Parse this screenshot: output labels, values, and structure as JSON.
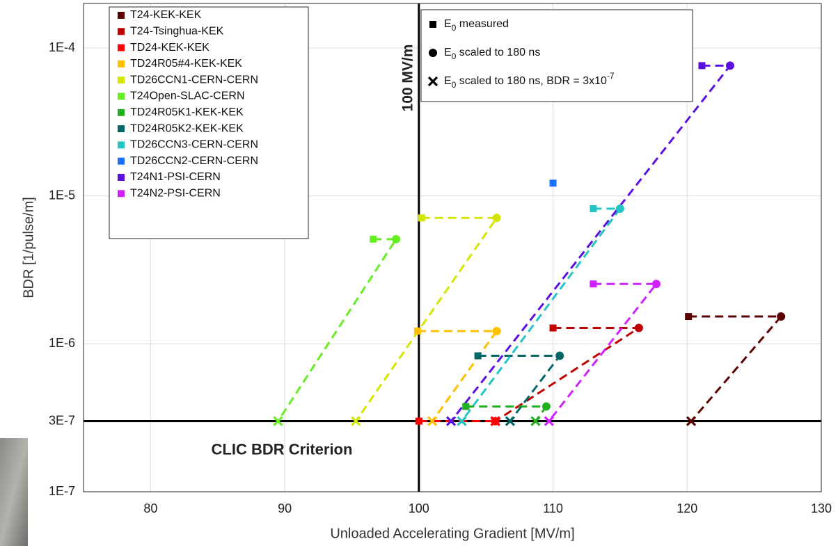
{
  "chart_data": {
    "type": "scatter",
    "x_label": "Unloaded Accelerating Gradient [MV/m]",
    "y_label": "BDR [1/pulse/m]",
    "xlim": [
      75,
      130
    ],
    "ylim": [
      1e-07,
      0.0002
    ],
    "y_scale": "log",
    "grid": true,
    "line_style": "dashed",
    "markers": [
      "square",
      "circle",
      "x"
    ],
    "xticks": [
      80,
      90,
      100,
      110,
      120,
      130
    ],
    "yticks": [
      {
        "value": 1e-07,
        "label": "1E-7"
      },
      {
        "value": 3e-07,
        "label": "3E-7"
      },
      {
        "value": 1e-06,
        "label": "1E-6"
      },
      {
        "value": 1e-05,
        "label": "1E-5"
      },
      {
        "value": 0.0001,
        "label": "1E-4"
      }
    ],
    "reference_lines": [
      {
        "axis": "x",
        "value": 100,
        "label": "100 MV/m"
      },
      {
        "axis": "y",
        "value": 3e-07,
        "label": "CLIC BDR Criterion"
      }
    ],
    "marker_legend": [
      {
        "base": "E",
        "subscript": "0",
        "text": " measured"
      },
      {
        "base": "E",
        "subscript": "0",
        "text": " scaled to 180 ns"
      },
      {
        "base": "E",
        "subscript": "0",
        "text": " scaled to 180 ns, BDR = 3x10",
        "superscript": "-7"
      }
    ],
    "series": [
      {
        "name": "T24-KEK-KEK",
        "color": "#5c0000",
        "x": [
          120.1,
          127.0,
          120.3
        ],
        "values": [
          1.53e-06,
          1.53e-06,
          3e-07
        ]
      },
      {
        "name": "T24-Tsinghua-KEK",
        "color": "#c00000",
        "x": [
          110.0,
          116.4,
          105.7
        ],
        "values": [
          1.28e-06,
          1.28e-06,
          3e-07
        ]
      },
      {
        "name": "TD24-KEK-KEK",
        "color": "#ff0000",
        "x": [
          100.0,
          105.7,
          105.7
        ],
        "values": [
          3e-07,
          3e-07,
          3e-07
        ]
      },
      {
        "name": "TD24R05#4-KEK-KEK",
        "color": "#ffc000",
        "x": [
          99.9,
          105.8,
          101.0
        ],
        "values": [
          1.22e-06,
          1.22e-06,
          3e-07
        ]
      },
      {
        "name": "TD26CCN1-CERN-CERN",
        "color": "#d4e600",
        "x": [
          100.2,
          105.8,
          95.3
        ],
        "values": [
          7.1e-06,
          7.1e-06,
          3e-07
        ]
      },
      {
        "name": "T24Open-SLAC-CERN",
        "color": "#66ee22",
        "x": [
          96.6,
          98.3,
          89.5
        ],
        "values": [
          5.1e-06,
          5.1e-06,
          3e-07
        ]
      },
      {
        "name": "TD24R05K1-KEK-KEK",
        "color": "#20b020",
        "x": [
          103.5,
          109.5,
          108.7
        ],
        "values": [
          3.77e-07,
          3.77e-07,
          3e-07
        ]
      },
      {
        "name": "TD24R05K2-KEK-KEK",
        "color": "#006666",
        "x": [
          104.4,
          110.5,
          106.8
        ],
        "values": [
          8.3e-07,
          8.3e-07,
          3e-07
        ]
      },
      {
        "name": "TD26CCN3-CERN-CERN",
        "color": "#22c4c4",
        "x": [
          113.0,
          115.0,
          103.2
        ],
        "values": [
          8.2e-06,
          8.2e-06,
          3e-07
        ]
      },
      {
        "name": "TD26CCN2-CERN-CERN",
        "color": "#1a70ff",
        "x": [
          110.0,
          null,
          null
        ],
        "values": [
          1.22e-05,
          null,
          null
        ]
      },
      {
        "name": "T24N1-PSI-CERN",
        "color": "#5a10e0",
        "x": [
          121.1,
          123.2,
          102.4
        ],
        "values": [
          7.6e-05,
          7.6e-05,
          3e-07
        ]
      },
      {
        "name": "T24N2-PSI-CERN",
        "color": "#d020ff",
        "x": [
          113.0,
          117.7,
          109.7
        ],
        "values": [
          2.54e-06,
          2.54e-06,
          3e-07
        ]
      }
    ]
  }
}
